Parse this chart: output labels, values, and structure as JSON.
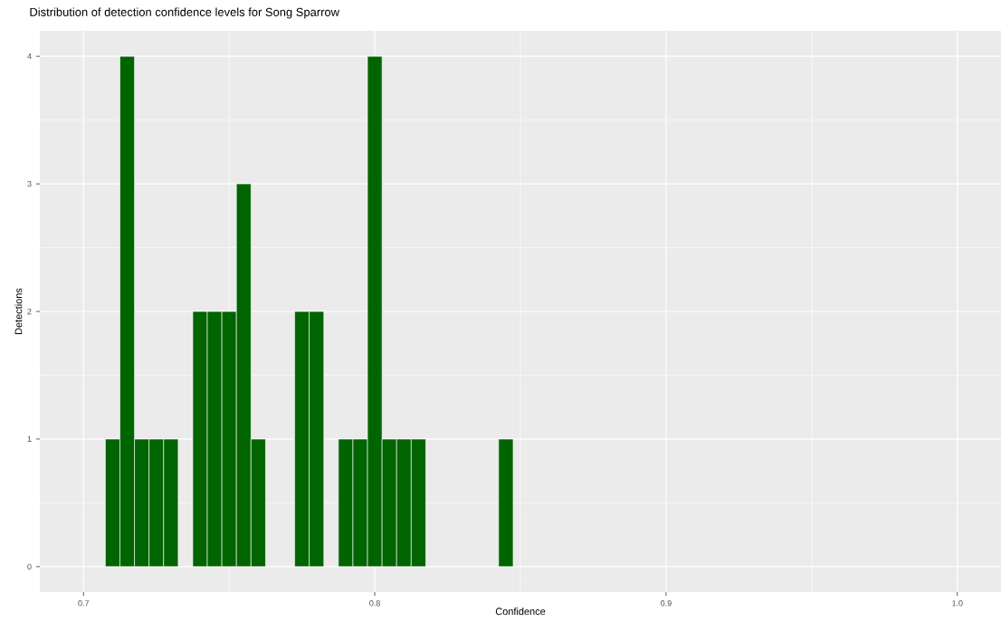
{
  "chart_data": {
    "type": "histogram",
    "title": "Distribution of detection confidence levels for Song Sparrow",
    "xlabel": "Confidence",
    "ylabel": "Detections",
    "bins": [
      0.7075,
      0.7125,
      0.7175,
      0.7225,
      0.7275,
      0.7325,
      0.7375,
      0.7425,
      0.7475,
      0.7525,
      0.7575,
      0.7625,
      0.7675,
      0.7725,
      0.7775,
      0.7825,
      0.7875,
      0.7925,
      0.7975,
      0.8025,
      0.8075,
      0.8125,
      0.8175,
      0.8225,
      0.8275,
      0.8325,
      0.8375,
      0.8425,
      0.8475
    ],
    "values": [
      1,
      4,
      1,
      1,
      1,
      0,
      2,
      2,
      2,
      3,
      1,
      0,
      0,
      2,
      2,
      0,
      1,
      1,
      4,
      1,
      1,
      1,
      0,
      0,
      0,
      0,
      0,
      1
    ],
    "color": "#006400",
    "xlim": [
      0.685,
      1.015
    ],
    "ylim": [
      -0.2,
      4.2
    ],
    "xticks": [
      0.7,
      0.8,
      0.9,
      {
        "value": 1.0,
        "label": "1.0"
      }
    ],
    "yticks": [
      0,
      1,
      2,
      3,
      4
    ],
    "grid": true
  }
}
